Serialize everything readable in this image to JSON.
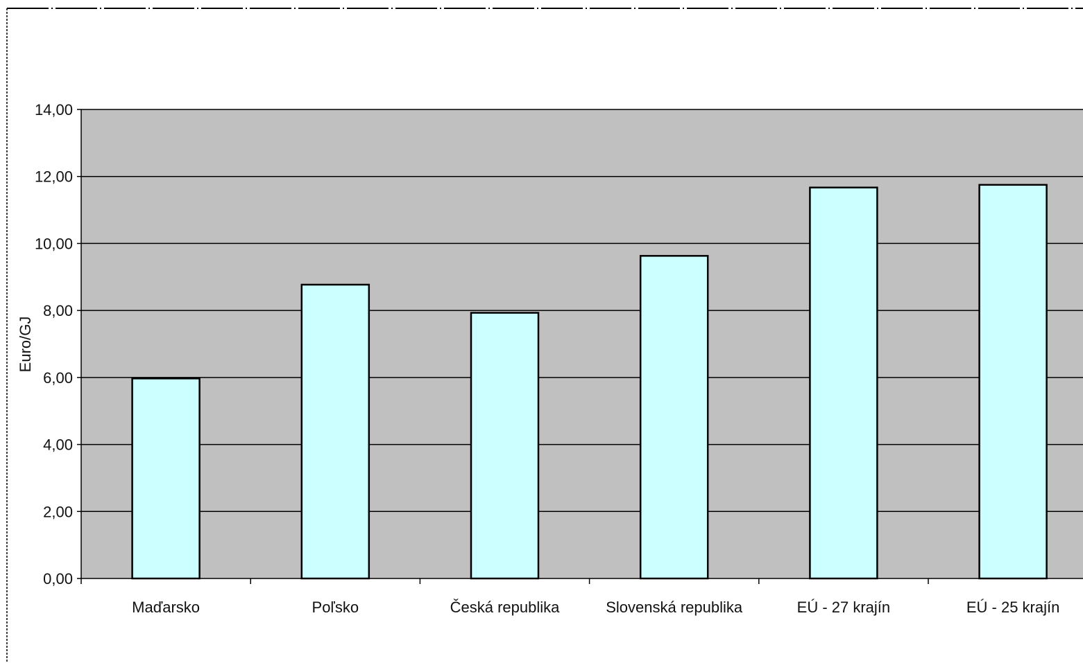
{
  "colors": {
    "plot_background": "#c0c0c0",
    "bar_fill": "#ccffff",
    "bar_stroke": "#000000",
    "gridline": "#000000",
    "page_background": "#ffffff"
  },
  "chart_data": {
    "type": "bar",
    "categories": [
      "Maďarsko",
      "Poľsko",
      "Česká republika",
      "Slovenská republika",
      "EÚ - 27 krajín",
      "EÚ - 25 krajín"
    ],
    "values": [
      5.97,
      8.77,
      7.93,
      9.63,
      11.67,
      11.75
    ],
    "title": "",
    "xlabel": "",
    "ylabel": "Euro/GJ",
    "ylim": [
      0,
      14
    ],
    "ytick_values": [
      0,
      2,
      4,
      6,
      8,
      10,
      12,
      14
    ],
    "ytick_labels": [
      "0,00",
      "2,00",
      "4,00",
      "6,00",
      "8,00",
      "10,00",
      "12,00",
      "14,00"
    ],
    "grid": true,
    "legend": "none"
  }
}
